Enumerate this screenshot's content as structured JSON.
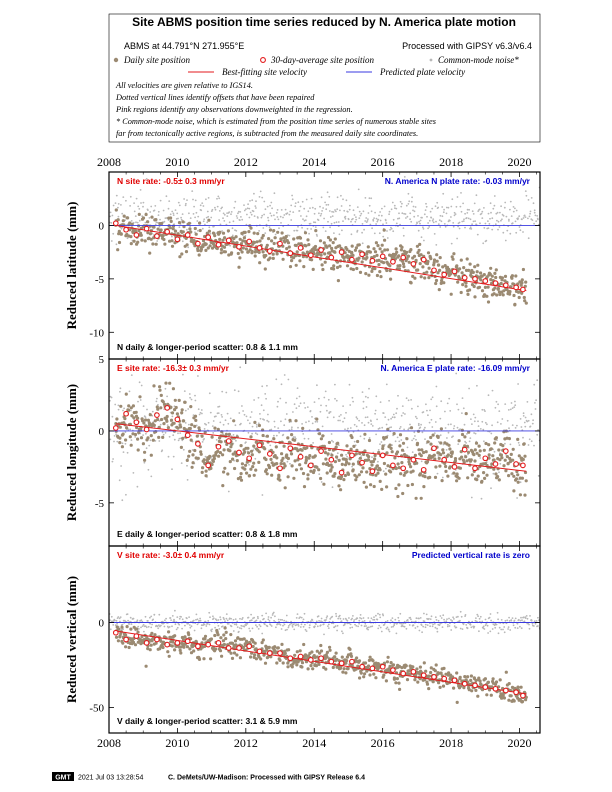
{
  "header": {
    "title": "Site ABMS position time series reduced by N. America plate motion",
    "site_line": "ABMS at 44.791°N 271.955°E",
    "processed_line": "Processed with GIPSY v6.3/v6.4",
    "legend": {
      "daily": "Daily site position",
      "avg": "30-day-average site position",
      "cm": "Common-mode noise*",
      "best": "Best-fitting site velocity",
      "pred": "Predicted plate velocity"
    },
    "notes": [
      "All velocities are given relative to IGS14.",
      "Dotted vertical lines identify offsets that have been repaired",
      "Pink regions identify any observations downweighted in the regression.",
      "* Common-mode noise, which is estimated from the position time series of numerous stable sites",
      "far from tectonically active regions, is subtracted from the measured daily site coordinates."
    ]
  },
  "footer": {
    "logo": "GMT",
    "timestamp": "2021 Jul 03 13:28:54",
    "credit": "C. DeMets/UW-Madison: Processed with GIPSY Release 6.4"
  },
  "colors": {
    "daily": "#9b8a72",
    "common_mode": "#b8b8b8",
    "avg_edge": "#e31a1c",
    "fit_line": "#e31a1c",
    "predicted_line": "#3a3ae0",
    "site_rate_text": "#e00000",
    "plate_rate_text": "#0000cc"
  },
  "chart_data": [
    {
      "type": "scatter",
      "component": "N",
      "ylabel": "Reduced latitude (mm)",
      "xlim": [
        2008,
        2020.6
      ],
      "ylim": [
        -12.5,
        5
      ],
      "xticks": [
        2008,
        2010,
        2012,
        2014,
        2016,
        2018,
        2020
      ],
      "yticks": [
        0,
        -5,
        -10
      ],
      "rate_label": "N site rate:  -0.5± 0.3 mm/yr",
      "plate_label": "N. America N plate rate:  -0.03 mm/yr",
      "scatter_label": "N daily & longer-period scatter:   0.8 &   1.1 mm",
      "fit": {
        "x": [
          2008.2,
          2020.2
        ],
        "y": [
          0.0,
          -6.1
        ]
      },
      "predicted": {
        "x": [
          2008,
          2020.6
        ],
        "y": [
          0,
          0
        ]
      },
      "avg": {
        "x": [
          2008.2,
          2008.5,
          2008.8,
          2009.1,
          2009.4,
          2009.7,
          2010.0,
          2010.3,
          2010.6,
          2010.9,
          2011.2,
          2011.5,
          2011.8,
          2012.1,
          2012.4,
          2012.7,
          2013.0,
          2013.3,
          2013.6,
          2013.9,
          2014.2,
          2014.5,
          2014.8,
          2015.1,
          2015.4,
          2015.7,
          2016.0,
          2016.3,
          2016.6,
          2016.9,
          2017.2,
          2017.5,
          2017.8,
          2018.1,
          2018.4,
          2018.7,
          2019.0,
          2019.3,
          2019.6,
          2019.9,
          2020.1
        ],
        "y": [
          0.2,
          -0.4,
          -0.9,
          -0.3,
          -1.0,
          -0.6,
          -1.3,
          -0.9,
          -1.7,
          -1.1,
          -1.8,
          -1.4,
          -2.0,
          -1.5,
          -2.1,
          -2.4,
          -1.7,
          -2.6,
          -2.1,
          -2.8,
          -2.3,
          -3.0,
          -2.5,
          -3.2,
          -2.7,
          -3.3,
          -2.9,
          -3.4,
          -3.0,
          -3.6,
          -3.2,
          -4.2,
          -4.6,
          -4.3,
          -4.9,
          -5.0,
          -5.2,
          -5.4,
          -5.6,
          -5.8,
          -6.0
        ]
      },
      "daily_series": {
        "start": 2008.2,
        "end": 2020.2,
        "intercept": 0.0,
        "slope": -0.51,
        "wiggle": 0.9,
        "noise": 0.8,
        "count": 780
      },
      "common_mode_series": {
        "start": 2008.0,
        "end": 2020.6,
        "center": 0.8,
        "noise": 1.1,
        "count": 700
      }
    },
    {
      "type": "scatter",
      "component": "E",
      "ylabel": "Reduced longitude (mm)",
      "xlim": [
        2008,
        2020.6
      ],
      "ylim": [
        -8,
        5
      ],
      "xticks": [
        2008,
        2010,
        2012,
        2014,
        2016,
        2018,
        2020
      ],
      "yticks": [
        5,
        0,
        -5
      ],
      "rate_label": "E site rate:  -16.3± 0.3 mm/yr",
      "plate_label": "N. America E plate rate:  -16.09 mm/yr",
      "scatter_label": "E daily & longer-period scatter:   0.8 &   1.8 mm",
      "fit": {
        "x": [
          2008.2,
          2020.2
        ],
        "y": [
          0.5,
          -2.8
        ]
      },
      "predicted": {
        "x": [
          2008,
          2020.6
        ],
        "y": [
          0,
          0
        ]
      },
      "avg": {
        "x": [
          2008.2,
          2008.5,
          2008.8,
          2009.1,
          2009.4,
          2009.7,
          2010.0,
          2010.3,
          2010.6,
          2010.9,
          2011.2,
          2011.5,
          2011.8,
          2012.1,
          2012.4,
          2012.7,
          2013.0,
          2013.3,
          2013.6,
          2013.9,
          2014.2,
          2014.5,
          2014.8,
          2015.1,
          2015.4,
          2015.7,
          2016.0,
          2016.3,
          2016.6,
          2016.9,
          2017.2,
          2017.5,
          2017.8,
          2018.1,
          2018.4,
          2018.7,
          2019.0,
          2019.3,
          2019.6,
          2019.9,
          2020.1
        ],
        "y": [
          0.2,
          1.2,
          0.6,
          0.1,
          1.1,
          1.6,
          0.8,
          -0.3,
          -0.9,
          -2.4,
          -1.1,
          -0.7,
          -1.5,
          -1.9,
          -1.0,
          -1.6,
          -2.6,
          -1.2,
          -1.8,
          -2.4,
          -1.4,
          -2.0,
          -2.9,
          -1.7,
          -2.2,
          -2.8,
          -1.7,
          -2.4,
          -2.6,
          -2.0,
          -2.7,
          -1.2,
          -2.0,
          -2.5,
          -1.3,
          -2.6,
          -1.9,
          -2.3,
          -1.4,
          -2.3,
          -2.4
        ]
      },
      "daily_series": {
        "start": 2008.2,
        "end": 2020.2,
        "intercept": 0.5,
        "slope": -0.27,
        "wiggle": 1.6,
        "noise": 0.9,
        "count": 780
      },
      "common_mode_series": {
        "start": 2008.0,
        "end": 2020.6,
        "center": 0.2,
        "noise": 1.6,
        "count": 700
      }
    },
    {
      "type": "scatter",
      "component": "V",
      "ylabel": "Reduced vertical (mm)",
      "xlim": [
        2008,
        2020.6
      ],
      "ylim": [
        -65,
        45
      ],
      "xticks": [
        2008,
        2010,
        2012,
        2014,
        2016,
        2018,
        2020
      ],
      "yticks": [
        0,
        -50
      ],
      "rate_label": "V site rate:  -3.0± 0.4 mm/yr",
      "plate_label": "Predicted vertical rate is zero",
      "scatter_label": "V daily & longer-period scatter:   3.1 &   5.9 mm",
      "fit": {
        "x": [
          2008.2,
          2020.2
        ],
        "y": [
          -5,
          -42
        ]
      },
      "predicted": {
        "x": [
          2008,
          2020.6
        ],
        "y": [
          0,
          0
        ]
      },
      "avg": {
        "x": [
          2008.2,
          2008.5,
          2008.8,
          2009.1,
          2009.4,
          2009.7,
          2010.0,
          2010.3,
          2010.6,
          2010.9,
          2011.2,
          2011.5,
          2011.8,
          2012.1,
          2012.4,
          2012.7,
          2013.0,
          2013.3,
          2013.6,
          2013.9,
          2014.2,
          2014.5,
          2014.8,
          2015.1,
          2015.4,
          2015.7,
          2016.0,
          2016.3,
          2016.6,
          2016.9,
          2017.2,
          2017.5,
          2017.8,
          2018.1,
          2018.4,
          2018.7,
          2019.0,
          2019.3,
          2019.6,
          2019.9,
          2020.1
        ],
        "y": [
          -6,
          -10,
          -8,
          -12,
          -10,
          -13,
          -12,
          -11,
          -14,
          -13,
          -12,
          -15,
          -15,
          -14,
          -17,
          -18,
          -18,
          -21,
          -20,
          -22,
          -21,
          -23,
          -24,
          -23,
          -26,
          -27,
          -26,
          -28,
          -30,
          -29,
          -31,
          -32,
          -33,
          -34,
          -36,
          -37,
          -38,
          -39,
          -40,
          -41,
          -43
        ]
      },
      "daily_series": {
        "start": 2008.2,
        "end": 2020.2,
        "intercept": -5,
        "slope": -3.0,
        "wiggle": 2.5,
        "noise": 3.2,
        "count": 780
      },
      "common_mode_series": {
        "start": 2008.0,
        "end": 2020.6,
        "center": 0,
        "noise": 2.5,
        "count": 700
      }
    }
  ]
}
